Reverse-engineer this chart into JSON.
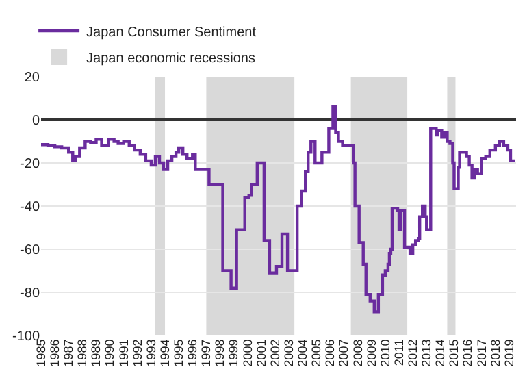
{
  "chart_data": {
    "type": "step",
    "x": [
      1985.0,
      1985.5,
      1986.0,
      1986.5,
      1987.0,
      1987.3,
      1987.5,
      1987.8,
      1988.2,
      1988.6,
      1989.0,
      1989.4,
      1989.9,
      1990.3,
      1990.6,
      1991.0,
      1991.4,
      1991.8,
      1992.2,
      1992.6,
      1993.0,
      1993.3,
      1993.6,
      1993.9,
      1994.2,
      1994.5,
      1994.8,
      1995.0,
      1995.3,
      1995.6,
      1996.0,
      1996.2,
      1997.2,
      1998.2,
      1998.8,
      1999.2,
      1999.8,
      2000.1,
      2000.3,
      2000.7,
      2001.2,
      2001.6,
      2002.1,
      2002.5,
      2002.9,
      2003.6,
      2003.9,
      2004.2,
      2004.4,
      2004.6,
      2004.9,
      2005.4,
      2005.9,
      2006.2,
      2006.4,
      2006.6,
      2006.9,
      2007.7,
      2007.8,
      2008.1,
      2008.4,
      2008.6,
      2008.9,
      2009.2,
      2009.5,
      2009.8,
      2010.0,
      2010.2,
      2010.3,
      2010.4,
      2010.5,
      2010.9,
      2011.0,
      2011.1,
      2011.4,
      2011.8,
      2012.0,
      2012.2,
      2012.4,
      2012.5,
      2012.7,
      2012.9,
      2013.0,
      2013.3,
      2013.7,
      2013.8,
      2014.1,
      2014.3,
      2014.5,
      2014.7,
      2014.9,
      2015.0,
      2015.3,
      2015.4,
      2015.9,
      2016.1,
      2016.3,
      2016.5,
      2016.7,
      2017.0,
      2017.3,
      2017.6,
      2018.0,
      2018.3,
      2018.6,
      2018.9,
      2019.1,
      2019.4
    ],
    "series": [
      {
        "name": "Japan Consumer Sentiment",
        "color": "#6a2c9e",
        "values": [
          -11.5,
          -12,
          -12.5,
          -13,
          -15,
          -19,
          -17,
          -13,
          -10,
          -10.5,
          -9,
          -12,
          -9,
          -10,
          -11,
          -10,
          -12,
          -14,
          -16,
          -19,
          -21,
          -17,
          -20,
          -23,
          -19,
          -17,
          -15,
          -13,
          -16,
          -18,
          -16,
          -23,
          -30,
          -70,
          -78,
          -51,
          -36,
          -35,
          -30,
          -20,
          -56,
          -71,
          -68,
          -53,
          -70,
          -40,
          -33,
          -24,
          -15,
          -10,
          -20,
          -15,
          -4,
          6,
          -6,
          -10,
          -12,
          -20,
          -40,
          -57,
          -67,
          -81,
          -84,
          -89,
          -81,
          -72,
          -70,
          -67,
          -62,
          -60,
          -41,
          -42,
          -51,
          -42,
          -59,
          -62,
          -58,
          -56,
          -55,
          -45,
          -40,
          -45,
          -51,
          -4,
          -7,
          -5,
          -8,
          -6,
          -10,
          -11,
          -20,
          -32,
          -22,
          -15,
          -17,
          -21,
          -27,
          -23,
          -25,
          -18,
          -17,
          -14,
          -12,
          -10,
          -12,
          -14,
          -19,
          -19
        ]
      }
    ],
    "bands": [
      {
        "axis": "x",
        "from": 1993.3,
        "to": 1994.0,
        "label": "Japan economic recessions",
        "color": "#d9d9d9"
      },
      {
        "axis": "x",
        "from": 1997.0,
        "to": 2003.4,
        "color": "#d9d9d9"
      },
      {
        "axis": "x",
        "from": 2007.5,
        "to": 2011.6,
        "color": "#d9d9d9"
      },
      {
        "axis": "x",
        "from": 2014.5,
        "to": 2015.1,
        "color": "#d9d9d9"
      }
    ],
    "xlim": [
      1985,
      2019.5
    ],
    "xticks": [
      1985,
      1986,
      1987,
      1988,
      1989,
      1990,
      1991,
      1992,
      1993,
      1994,
      1995,
      1996,
      1997,
      1998,
      1999,
      2000,
      2001,
      2002,
      2003,
      2004,
      2005,
      2006,
      2007,
      2008,
      2009,
      2010,
      2011,
      2012,
      2013,
      2014,
      2015,
      2016,
      2017,
      2018,
      2019
    ],
    "ylim": [
      -100,
      20
    ],
    "yticks": [
      20,
      0,
      -20,
      -40,
      -60,
      -80,
      -100
    ],
    "grid": "y",
    "legend": "top left"
  }
}
